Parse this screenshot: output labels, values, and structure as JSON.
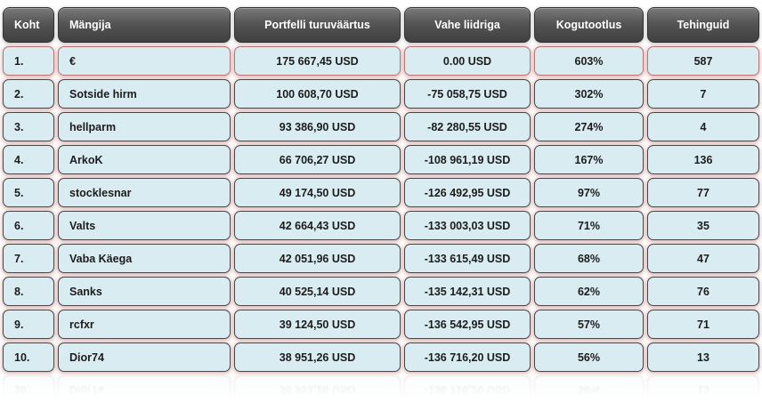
{
  "table": {
    "columns": [
      {
        "label": "Koht"
      },
      {
        "label": "Mängija"
      },
      {
        "label": "Portfelli turuväärtus"
      },
      {
        "label": "Vahe liidriga"
      },
      {
        "label": "Kogutootlus"
      },
      {
        "label": "Tehinguid"
      }
    ],
    "rows": [
      {
        "koht": "1.",
        "mangija": "€",
        "portfell": "175 667,45 USD",
        "vahe": "0.00 USD",
        "tootlus": "603%",
        "tehingud": "587",
        "leader": true
      },
      {
        "koht": "2.",
        "mangija": "Sotside hirm",
        "portfell": "100 608,70 USD",
        "vahe": "-75 058,75 USD",
        "tootlus": "302%",
        "tehingud": "7",
        "leader": false
      },
      {
        "koht": "3.",
        "mangija": "hellparm",
        "portfell": "93 386,90 USD",
        "vahe": "-82 280,55 USD",
        "tootlus": "274%",
        "tehingud": "4",
        "leader": false
      },
      {
        "koht": "4.",
        "mangija": "ArkoK",
        "portfell": "66 706,27 USD",
        "vahe": "-108 961,19 USD",
        "tootlus": "167%",
        "tehingud": "136",
        "leader": false
      },
      {
        "koht": "5.",
        "mangija": "stocklesnar",
        "portfell": "49 174,50 USD",
        "vahe": "-126 492,95 USD",
        "tootlus": "97%",
        "tehingud": "77",
        "leader": false
      },
      {
        "koht": "6.",
        "mangija": "Valts",
        "portfell": "42 664,43 USD",
        "vahe": "-133 003,03 USD",
        "tootlus": "71%",
        "tehingud": "35",
        "leader": false
      },
      {
        "koht": "7.",
        "mangija": "Vaba Käega",
        "portfell": "42 051,96 USD",
        "vahe": "-133 615,49 USD",
        "tootlus": "68%",
        "tehingud": "47",
        "leader": false
      },
      {
        "koht": "8.",
        "mangija": "Sanks",
        "portfell": "40 525,14 USD",
        "vahe": "-135 142,31 USD",
        "tootlus": "62%",
        "tehingud": "76",
        "leader": false
      },
      {
        "koht": "9.",
        "mangija": "rcfxr",
        "portfell": "39 124,50 USD",
        "vahe": "-136 542,95 USD",
        "tootlus": "57%",
        "tehingud": "71",
        "leader": false
      },
      {
        "koht": "10.",
        "mangija": "Dior74",
        "portfell": "38 951,26 USD",
        "vahe": "-136 716,20 USD",
        "tootlus": "56%",
        "tehingud": "13",
        "leader": false
      }
    ]
  },
  "colors": {
    "header_bg": "#4f4f4f",
    "header_text": "#ffffff",
    "cell_bg": "#d9ecf2",
    "cell_border": "#474747",
    "leader_border": "#b97678",
    "halo": "#c37d7a",
    "text": "#1c1c1c"
  }
}
